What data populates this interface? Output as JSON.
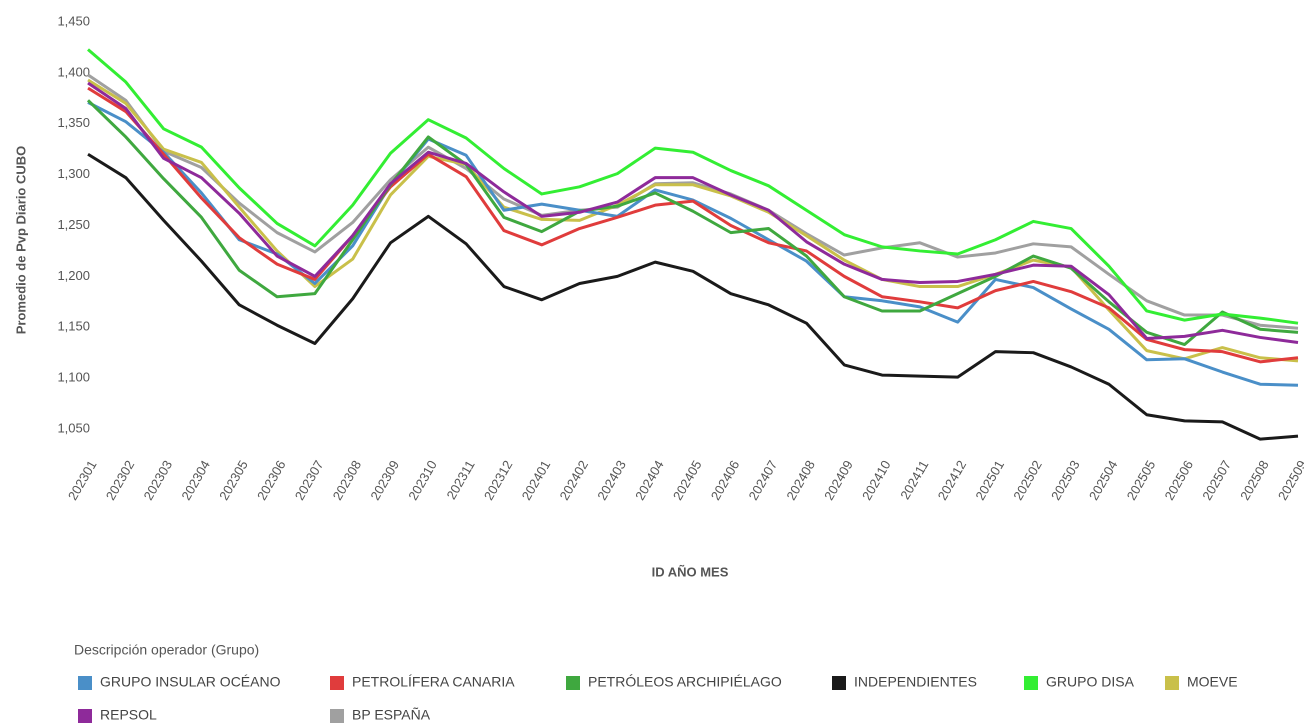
{
  "chart_data": {
    "type": "line",
    "x_label": "ID AÑO MES",
    "y_label": "Promedio de Pvp Diario CUBO",
    "legend_title": "Descripción operador (Grupo)",
    "categories": [
      "202301",
      "202302",
      "202303",
      "202304",
      "202305",
      "202306",
      "202307",
      "202308",
      "202309",
      "202310",
      "202311",
      "202312",
      "202401",
      "202402",
      "202403",
      "202404",
      "202405",
      "202406",
      "202407",
      "202408",
      "202409",
      "202410",
      "202411",
      "202412",
      "202501",
      "202502",
      "202503",
      "202504",
      "202505",
      "202506",
      "202507",
      "202508",
      "202509"
    ],
    "ylim": [
      1030,
      1450
    ],
    "yticks": [
      {
        "value": 1050,
        "label": "1,050"
      },
      {
        "value": 1100,
        "label": "1,100"
      },
      {
        "value": 1150,
        "label": "1,150"
      },
      {
        "value": 1200,
        "label": "1,200"
      },
      {
        "value": 1250,
        "label": "1,250"
      },
      {
        "value": 1300,
        "label": "1,300"
      },
      {
        "value": 1350,
        "label": "1,350"
      },
      {
        "value": 1400,
        "label": "1,400"
      },
      {
        "value": 1450,
        "label": "1,450"
      }
    ],
    "series": [
      {
        "name": "GRUPO INSULAR OCÉANO",
        "color": "#4a8fc8",
        "values": [
          1371,
          1352,
          1322,
          1282,
          1236,
          1222,
          1193,
          1230,
          1290,
          1335,
          1319,
          1265,
          1271,
          1265,
          1259,
          1285,
          1275,
          1257,
          1236,
          1215,
          1180,
          1176,
          1170,
          1155,
          1197,
          1189,
          1168,
          1148,
          1118,
          1119,
          1106,
          1094,
          1093
        ]
      },
      {
        "name": "PETROLÍFERA CANARIA",
        "color": "#e03c3c",
        "values": [
          1385,
          1362,
          1320,
          1277,
          1238,
          1212,
          1197,
          1240,
          1288,
          1320,
          1298,
          1245,
          1231,
          1247,
          1258,
          1270,
          1274,
          1250,
          1233,
          1225,
          1200,
          1180,
          1175,
          1169,
          1186,
          1195,
          1185,
          1169,
          1138,
          1128,
          1126,
          1116,
          1120
        ]
      },
      {
        "name": "PETRÓLEOS ARCHIPIÉLAGO",
        "color": "#3fa83f",
        "values": [
          1373,
          1337,
          1296,
          1258,
          1206,
          1180,
          1183,
          1236,
          1290,
          1337,
          1310,
          1258,
          1244,
          1264,
          1269,
          1282,
          1264,
          1243,
          1247,
          1220,
          1180,
          1166,
          1166,
          1183,
          1200,
          1220,
          1208,
          1175,
          1145,
          1133,
          1165,
          1148,
          1145
        ]
      },
      {
        "name": "INDEPENDIENTES",
        "color": "#1a1a1a",
        "values": [
          1320,
          1297,
          1255,
          1215,
          1172,
          1152,
          1134,
          1178,
          1233,
          1259,
          1232,
          1190,
          1177,
          1193,
          1200,
          1214,
          1205,
          1183,
          1172,
          1154,
          1113,
          1103,
          1102,
          1101,
          1126,
          1125,
          1111,
          1094,
          1064,
          1058,
          1057,
          1040,
          1043
        ]
      },
      {
        "name": "GRUPO DISA",
        "color": "#33ee33",
        "values": [
          1423,
          1391,
          1345,
          1327,
          1287,
          1252,
          1230,
          1270,
          1321,
          1354,
          1336,
          1306,
          1281,
          1288,
          1301,
          1326,
          1322,
          1304,
          1289,
          1265,
          1241,
          1229,
          1225,
          1222,
          1236,
          1254,
          1247,
          1210,
          1166,
          1157,
          1163,
          1159,
          1154
        ]
      },
      {
        "name": "MOEVE",
        "color": "#c9c04a",
        "values": [
          1393,
          1370,
          1325,
          1312,
          1268,
          1225,
          1190,
          1217,
          1280,
          1318,
          1310,
          1268,
          1256,
          1255,
          1270,
          1290,
          1290,
          1279,
          1263,
          1240,
          1216,
          1197,
          1190,
          1190,
          1202,
          1216,
          1209,
          1167,
          1127,
          1119,
          1130,
          1120,
          1117
        ]
      },
      {
        "name": "REPSOL",
        "color": "#8e2a9a",
        "values": [
          1390,
          1365,
          1316,
          1297,
          1262,
          1220,
          1200,
          1240,
          1291,
          1322,
          1311,
          1283,
          1259,
          1263,
          1273,
          1297,
          1297,
          1280,
          1265,
          1234,
          1212,
          1197,
          1194,
          1195,
          1202,
          1211,
          1210,
          1182,
          1139,
          1141,
          1147,
          1140,
          1135
        ]
      },
      {
        "name": "BP ESPAÑA",
        "color": "#a0a0a0",
        "values": [
          1398,
          1373,
          1323,
          1307,
          1272,
          1243,
          1224,
          1253,
          1295,
          1327,
          1306,
          1276,
          1260,
          1265,
          1268,
          1291,
          1292,
          1281,
          1265,
          1242,
          1221,
          1228,
          1233,
          1219,
          1223,
          1232,
          1229,
          1202,
          1176,
          1162,
          1162,
          1152,
          1149
        ]
      }
    ]
  }
}
